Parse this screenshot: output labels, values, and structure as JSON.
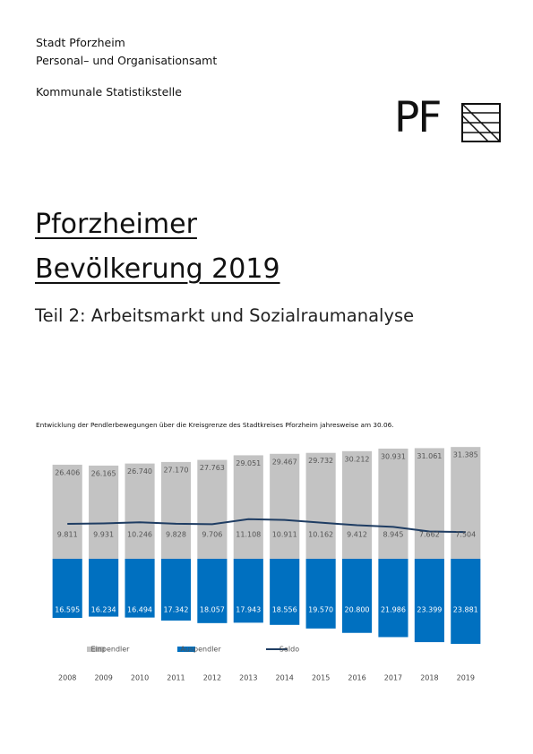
{
  "header": {
    "lines": [
      "Stadt Pforzheim",
      "Personal– und Organisationsamt",
      "Kommunale Statistikstelle"
    ]
  },
  "logo": "PF",
  "title": [
    "Pforzheimer",
    "Bevölkerung 2019"
  ],
  "subtitle": "Teil 2: Arbeitsmarkt und Sozialraumanalyse",
  "chart_data": {
    "type": "bar",
    "title": "Entwicklung der Pendlerbewegungen über die Kreisgrenze des Stadtkreises Pforzheim jahresweise am 30.06.",
    "categories": [
      "2008",
      "2009",
      "2010",
      "2011",
      "2012",
      "2013",
      "2014",
      "2015",
      "2016",
      "2017",
      "2018",
      "2019"
    ],
    "series": [
      {
        "name": "Einpendler",
        "color": "#c3c3c3",
        "direction": "up",
        "values": [
          26406,
          26165,
          26740,
          27170,
          27763,
          29051,
          29467,
          29732,
          30212,
          30931,
          31061,
          31385
        ],
        "value_labels": [
          "26.406",
          "26.165",
          "26.740",
          "27.170",
          "27.763",
          "29.051",
          "29.467",
          "29.732",
          "30.212",
          "30.931",
          "31.061",
          "31.385"
        ]
      },
      {
        "name": "Auspendler",
        "color": "#0070c0",
        "direction": "down",
        "values": [
          16595,
          16234,
          16494,
          17342,
          18057,
          17943,
          18556,
          19570,
          20800,
          21986,
          23399,
          23881
        ],
        "value_labels": [
          "16.595",
          "16.234",
          "16.494",
          "17.342",
          "18.057",
          "17.943",
          "18.556",
          "19.570",
          "20.800",
          "21.986",
          "23.399",
          "23.881"
        ]
      },
      {
        "name": "Saldo",
        "color": "#1f3d63",
        "type": "line",
        "values": [
          9811,
          9931,
          10246,
          9828,
          9706,
          11108,
          10911,
          10162,
          9412,
          8945,
          7662,
          7504
        ],
        "value_labels": [
          "9.811",
          "9.931",
          "10.246",
          "9.828",
          "9.706",
          "11.108",
          "10.911",
          "10.162",
          "9.412",
          "8.945",
          "7.662",
          "7.504"
        ]
      }
    ]
  }
}
